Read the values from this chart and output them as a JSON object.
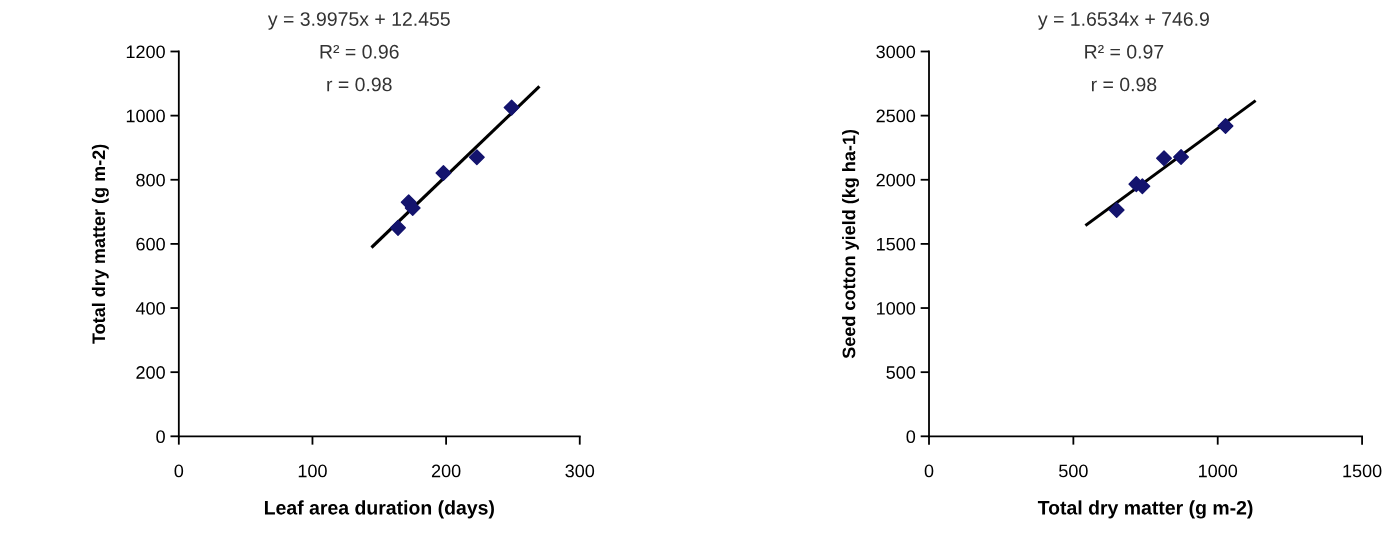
{
  "chart_data": [
    {
      "type": "scatter",
      "xlabel": "Leaf area duration (days)",
      "ylabel": "Total dry matter (g m-2)",
      "xlim": [
        0,
        300
      ],
      "xticks": [
        0,
        100,
        200,
        300
      ],
      "ylim": [
        0,
        1200
      ],
      "yticks": [
        0,
        200,
        400,
        600,
        800,
        1000,
        1200
      ],
      "grid": false,
      "legend": false,
      "marker": "diamond",
      "annotations": [
        "y = 3.9975x + 12.455",
        "R² = 0.96",
        "r = 0.98"
      ],
      "series": [
        {
          "color": "#14146e",
          "x": [
            164,
            172,
            175,
            198,
            223,
            249
          ],
          "values": [
            650,
            730,
            712,
            821,
            870,
            1025
          ]
        },
        {
          "type": "line",
          "color": "#000000",
          "marker": "none",
          "x": [
            145,
            269
          ],
          "values": [
            592,
            1088
          ]
        }
      ]
    },
    {
      "type": "scatter",
      "xlabel": "Total dry matter (g m-2)",
      "ylabel": "Seed cotton yield (kg ha-1)",
      "xlim": [
        0,
        1500
      ],
      "xticks": [
        0,
        500,
        1000,
        1500
      ],
      "ylim": [
        0,
        3000
      ],
      "yticks": [
        0,
        500,
        1000,
        1500,
        2000,
        2500,
        3000
      ],
      "grid": false,
      "legend": false,
      "marker": "diamond",
      "annotations": [
        "y = 1.6534x + 746.9",
        "R² = 0.97",
        "r = 0.98"
      ],
      "series": [
        {
          "color": "#14146e",
          "x": [
            650,
            718,
            739,
            814,
            873,
            1027
          ],
          "values": [
            1765,
            1966,
            1950,
            2168,
            2178,
            2419
          ]
        },
        {
          "type": "line",
          "color": "#000000",
          "marker": "none",
          "x": [
            546,
            1127
          ],
          "values": [
            1650,
            2610
          ]
        }
      ]
    }
  ]
}
